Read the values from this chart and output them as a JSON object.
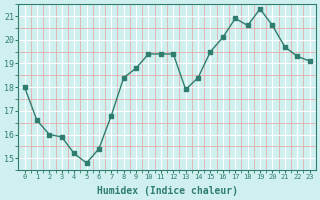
{
  "x": [
    0,
    1,
    2,
    3,
    4,
    5,
    6,
    7,
    8,
    9,
    10,
    11,
    12,
    13,
    14,
    15,
    16,
    17,
    18,
    19,
    20,
    21,
    22,
    23
  ],
  "y": [
    18.0,
    16.6,
    16.0,
    15.9,
    15.2,
    14.8,
    15.4,
    16.8,
    18.4,
    18.8,
    19.4,
    19.4,
    19.4,
    17.9,
    18.4,
    19.5,
    20.1,
    20.9,
    20.6,
    21.3,
    20.6,
    19.7,
    19.3,
    19.1
  ],
  "xlabel": "Humidex (Indice chaleur)",
  "bg_color": "#d0f0f0",
  "line_color": "#2e7d6e",
  "ylim": [
    14.5,
    21.5
  ],
  "xlim": [
    -0.5,
    23.5
  ],
  "yticks": [
    15,
    16,
    17,
    18,
    19,
    20,
    21
  ],
  "xticks": [
    0,
    1,
    2,
    3,
    4,
    5,
    6,
    7,
    8,
    9,
    10,
    11,
    12,
    13,
    14,
    15,
    16,
    17,
    18,
    19,
    20,
    21,
    22,
    23
  ]
}
